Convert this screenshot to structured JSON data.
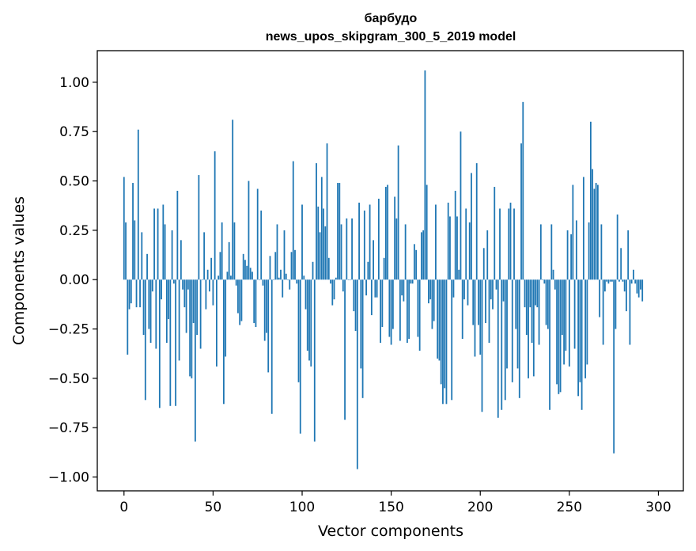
{
  "chart_data": {
    "type": "bar",
    "title": "барбудо",
    "subtitle": "news_upos_skipgram_300_5_2019 model",
    "xlabel": "Vector components",
    "ylabel": "Components values",
    "xlim": [
      -15,
      314
    ],
    "ylim": [
      -1.07,
      1.16
    ],
    "x_ticks": [
      0,
      50,
      100,
      150,
      200,
      250,
      300
    ],
    "y_ticks": [
      -1.0,
      -0.75,
      -0.5,
      -0.25,
      0.0,
      0.25,
      0.5,
      0.75,
      1.0
    ],
    "x_tick_labels": [
      "0",
      "50",
      "100",
      "150",
      "200",
      "250",
      "300"
    ],
    "y_tick_labels": [
      "−1.00",
      "−0.75",
      "−0.50",
      "−0.25",
      "0.00",
      "0.25",
      "0.50",
      "0.75",
      "1.00"
    ],
    "bar_color": "#1f77b4",
    "values": [
      0.52,
      0.29,
      -0.38,
      -0.15,
      -0.12,
      0.49,
      0.3,
      -0.14,
      0.76,
      -0.14,
      0.24,
      -0.28,
      -0.61,
      0.13,
      -0.25,
      -0.32,
      -0.06,
      0.36,
      -0.35,
      0.36,
      -0.65,
      -0.1,
      0.38,
      0.28,
      -0.32,
      -0.2,
      -0.64,
      0.25,
      -0.02,
      -0.64,
      0.45,
      -0.41,
      0.2,
      -0.05,
      -0.14,
      -0.27,
      -0.05,
      -0.49,
      -0.5,
      -0.22,
      -0.82,
      -0.28,
      0.53,
      -0.35,
      0.0,
      0.24,
      -0.15,
      0.05,
      -0.06,
      0.11,
      -0.13,
      0.65,
      -0.44,
      0.02,
      0.14,
      0.29,
      -0.63,
      -0.39,
      0.04,
      0.19,
      0.02,
      0.81,
      0.29,
      -0.03,
      -0.17,
      -0.23,
      -0.21,
      0.13,
      0.1,
      0.07,
      0.5,
      0.06,
      0.04,
      -0.22,
      -0.24,
      0.46,
      0.0,
      0.35,
      -0.03,
      -0.31,
      -0.27,
      -0.47,
      0.12,
      -0.68,
      0.0,
      0.14,
      0.28,
      0.01,
      0.05,
      -0.09,
      0.25,
      0.03,
      0.0,
      -0.05,
      0.14,
      0.6,
      0.15,
      -0.02,
      -0.52,
      -0.78,
      0.38,
      0.02,
      -0.15,
      -0.36,
      -0.41,
      -0.44,
      0.09,
      -0.82,
      0.59,
      0.37,
      0.24,
      0.52,
      0.36,
      0.27,
      0.69,
      0.11,
      -0.02,
      -0.13,
      -0.1,
      0.01,
      0.49,
      0.49,
      0.28,
      -0.06,
      -0.71,
      0.31,
      0.0,
      0.0,
      0.31,
      -0.16,
      -0.26,
      -0.96,
      0.39,
      -0.45,
      -0.6,
      0.35,
      -0.08,
      0.09,
      0.38,
      -0.18,
      0.2,
      -0.09,
      -0.09,
      0.41,
      -0.32,
      -0.24,
      0.11,
      0.47,
      0.48,
      -0.29,
      -0.33,
      -0.25,
      0.42,
      0.31,
      0.68,
      -0.31,
      -0.08,
      -0.11,
      0.28,
      -0.32,
      -0.3,
      -0.02,
      -0.02,
      0.18,
      0.15,
      -0.29,
      -0.36,
      0.24,
      0.25,
      1.06,
      0.48,
      -0.12,
      -0.1,
      -0.25,
      -0.21,
      0.38,
      -0.4,
      -0.41,
      -0.53,
      -0.63,
      -0.55,
      -0.63,
      0.39,
      0.32,
      -0.61,
      -0.09,
      0.45,
      0.32,
      0.05,
      0.75,
      -0.3,
      -0.1,
      0.36,
      -0.13,
      0.29,
      0.54,
      -0.23,
      -0.39,
      0.59,
      -0.23,
      -0.38,
      -0.67,
      0.16,
      -0.22,
      0.25,
      -0.32,
      -0.1,
      -0.15,
      0.47,
      -0.05,
      -0.7,
      0.36,
      -0.66,
      -0.11,
      -0.61,
      -0.45,
      0.36,
      0.39,
      -0.52,
      0.36,
      -0.25,
      -0.45,
      -0.6,
      0.69,
      0.9,
      -0.14,
      -0.28,
      -0.5,
      -0.14,
      -0.32,
      -0.49,
      -0.13,
      -0.14,
      -0.33,
      0.28,
      0.0,
      -0.02,
      -0.23,
      -0.25,
      -0.66,
      0.28,
      0.05,
      -0.05,
      -0.53,
      -0.58,
      -0.57,
      -0.28,
      -0.43,
      -0.36,
      0.25,
      -0.44,
      0.23,
      0.48,
      -0.35,
      0.3,
      -0.59,
      -0.52,
      -0.66,
      0.52,
      -0.5,
      -0.43,
      0.29,
      0.8,
      0.56,
      0.46,
      0.49,
      0.48,
      -0.19,
      0.28,
      -0.33,
      -0.06,
      -0.01,
      -0.02,
      -0.01,
      -0.01,
      -0.88,
      -0.25,
      0.33,
      -0.01,
      0.16,
      -0.01,
      -0.06,
      -0.16,
      0.25,
      -0.33,
      -0.02,
      0.05,
      -0.02,
      -0.07,
      -0.09,
      -0.05,
      -0.11
    ]
  }
}
